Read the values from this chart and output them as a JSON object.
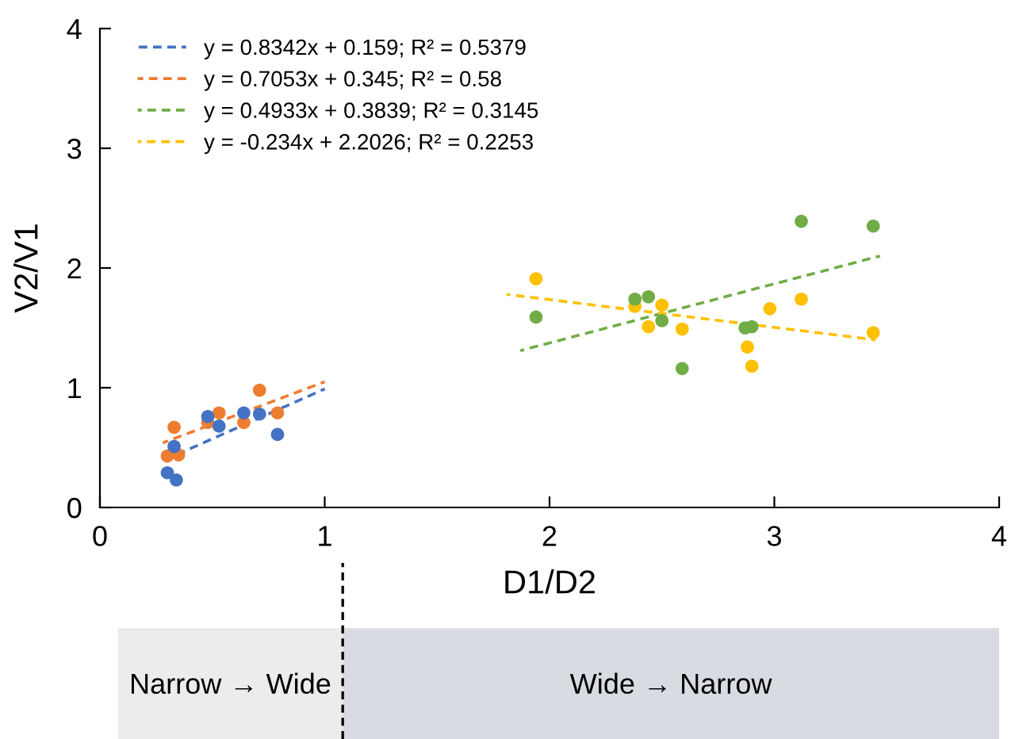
{
  "chart_data": {
    "type": "scatter",
    "xlabel": "D1/D2",
    "ylabel": "V2/V1",
    "xlim": [
      0,
      4
    ],
    "xticks": [
      0,
      1,
      2,
      3,
      4
    ],
    "ylim": [
      0,
      4
    ],
    "yticks": [
      0,
      1,
      2,
      3,
      4
    ],
    "grid": false,
    "legend": "top left",
    "marker": "circle",
    "series": [
      {
        "color": "#4472c4",
        "x": [
          0.33,
          0.3,
          0.34,
          0.48,
          0.53,
          0.64,
          0.71,
          0.79
        ],
        "values": [
          0.51,
          0.29,
          0.23,
          0.76,
          0.68,
          0.79,
          0.78,
          0.61
        ]
      },
      {
        "color": "#ed7d31",
        "x": [
          0.33,
          0.3,
          0.35,
          0.48,
          0.53,
          0.64,
          0.71,
          0.79
        ],
        "values": [
          0.67,
          0.43,
          0.44,
          0.71,
          0.79,
          0.71,
          0.98,
          0.79
        ]
      },
      {
        "color": "#70ad47",
        "x": [
          1.94,
          2.38,
          2.44,
          2.5,
          2.59,
          2.87,
          2.9,
          3.12,
          3.44
        ],
        "values": [
          1.59,
          1.74,
          1.76,
          1.56,
          1.16,
          1.5,
          1.51,
          2.39,
          2.35
        ]
      },
      {
        "color": "#ffc000",
        "x": [
          1.94,
          2.38,
          2.5,
          2.44,
          2.59,
          2.98,
          3.12,
          2.88,
          2.9,
          3.44
        ],
        "values": [
          1.91,
          1.68,
          1.69,
          1.51,
          1.49,
          1.66,
          1.74,
          1.34,
          1.18,
          1.46
        ]
      },
      {
        "type": "line",
        "line_style": "dashed",
        "marker": "none",
        "name": "y = 0.8342x + 0.159; R² = 0.5379",
        "color": "#4472c4",
        "x": [
          0.28,
          1.0
        ],
        "values": [
          0.39,
          0.99
        ]
      },
      {
        "type": "line",
        "line_style": "dashed",
        "marker": "none",
        "name": "y = 0.7053x + 0.345; R² = 0.58",
        "color": "#ed7d31",
        "x": [
          0.28,
          1.0
        ],
        "values": [
          0.54,
          1.05
        ]
      },
      {
        "type": "line",
        "line_style": "dashed",
        "marker": "none",
        "name": "y = 0.4933x + 0.3839; R² = 0.3145",
        "color": "#70ad47",
        "x": [
          1.87,
          3.47
        ],
        "values": [
          1.31,
          2.1
        ]
      },
      {
        "type": "line",
        "line_style": "dashed",
        "marker": "none",
        "name": "y = -0.234x + 2.2026; R² = 0.2253",
        "color": "#ffc000",
        "x": [
          1.81,
          3.45
        ],
        "values": [
          1.78,
          1.4
        ]
      }
    ],
    "annotations": [
      "Narrow → Wide",
      "Wide → Narrow"
    ]
  }
}
